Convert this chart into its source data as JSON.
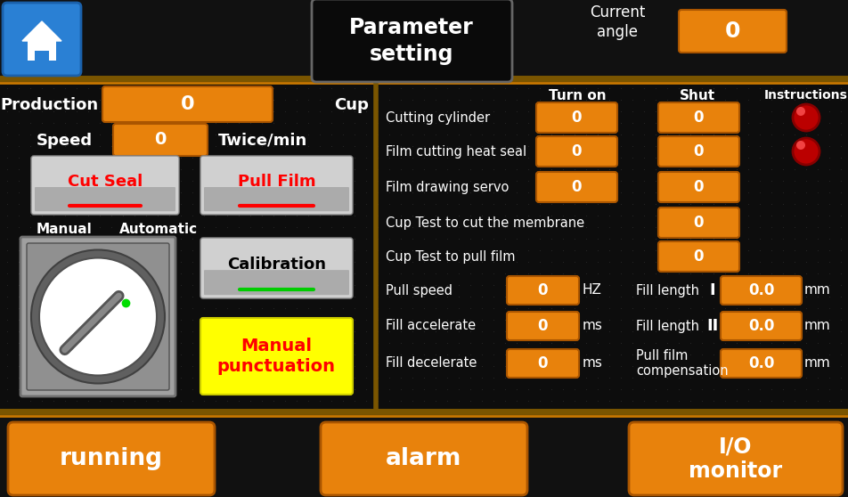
{
  "bg_color": "#0d0d0d",
  "orange_color": "#E8820C",
  "title": "Parameter\nsetting",
  "current_angle_label": "Current\nangle",
  "current_angle_val": "0",
  "production_label": "Production",
  "cup_label": "Cup",
  "production_val": "0",
  "speed_label": "Speed",
  "speed_val": "0",
  "twice_min_label": "Twice/min",
  "cut_seal_label": "Cut Seal",
  "pull_film_label": "Pull Film",
  "manual_label": "Manual",
  "automatic_label": "Automatic",
  "calibration_label": "Calibration",
  "manual_punc_label": "Manual\npunctuation",
  "turn_on_label": "Turn on",
  "shut_label": "Shut",
  "instructions_label": "Instructions",
  "rows": [
    {
      "label": "Cutting cylinder",
      "turn_on": "0",
      "shut": "0",
      "has_indicator": true
    },
    {
      "label": "Film cutting heat seal",
      "turn_on": "0",
      "shut": "0",
      "has_indicator": true
    },
    {
      "label": "Film drawing servo",
      "turn_on": "0",
      "shut": "0",
      "has_indicator": false
    },
    {
      "label": "Cup Test to cut the membrane",
      "turn_on": null,
      "shut": "0",
      "has_indicator": false
    },
    {
      "label": "Cup Test to pull film",
      "turn_on": null,
      "shut": "0",
      "has_indicator": false
    }
  ],
  "pull_speed_label": "Pull speed",
  "pull_speed_val": "0",
  "pull_speed_unit": "HZ",
  "fill_length1_label": "Fill length",
  "fill_length1_sym": "I",
  "fill_length1_val": "0.0",
  "fill_length1_unit": "mm",
  "fill_accel_label": "Fill accelerate",
  "fill_accel_val": "0",
  "fill_accel_unit": "ms",
  "fill_length2_label": "Fill length",
  "fill_length2_sym": "II",
  "fill_length2_val": "0.0",
  "fill_length2_unit": "mm",
  "fill_decel_label": "Fill decelerate",
  "fill_decel_val": "0",
  "fill_decel_unit": "ms",
  "pull_film_comp_label": "Pull film\ncompensation",
  "pull_film_comp_val": "0.0",
  "pull_film_comp_unit": "mm",
  "running_label": "running",
  "alarm_label": "alarm",
  "io_monitor_label": "I/O\nmonitor",
  "figsize": [
    9.53,
    5.58
  ],
  "dpi": 100
}
